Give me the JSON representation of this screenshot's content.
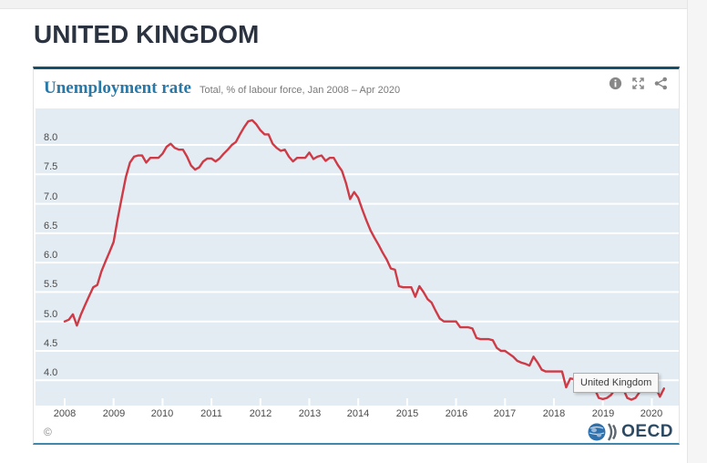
{
  "page": {
    "title": "UNITED KINGDOM"
  },
  "card": {
    "header": {
      "title": "Unemployment rate",
      "subtitle": "Total, % of labour force, Jan 2008 – Apr 2020",
      "icons": [
        {
          "name": "info-icon"
        },
        {
          "name": "fullscreen-icon"
        },
        {
          "name": "share-icon"
        }
      ]
    },
    "tooltip": {
      "label": "United Kingdom"
    },
    "footer": {
      "copyright": "©",
      "logo_text": "OECD"
    }
  },
  "colors": {
    "accent_title": "#2878a8",
    "line": "#ce3a46",
    "plot_background": "#e3ecf3",
    "gridline": "#ffffff",
    "card_top_border": "#15506b",
    "card_bottom_border": "#4186ad",
    "tick_label": "#4a4a4a"
  },
  "chart_data": {
    "type": "line",
    "title": "Unemployment rate",
    "subtitle": "Total, % of labour force, Jan 2008 – Apr 2020",
    "unit": "% of labour force",
    "frequency": "monthly",
    "x_start": "2008-01",
    "x_end": "2020-04",
    "x_tick_labels": [
      "2008",
      "2009",
      "2010",
      "2011",
      "2012",
      "2013",
      "2014",
      "2015",
      "2016",
      "2017",
      "2018",
      "2019",
      "2020"
    ],
    "y_tick_labels": [
      "4.0",
      "4.5",
      "5.0",
      "5.5",
      "6.0",
      "6.5",
      "7.0",
      "7.5",
      "8.0"
    ],
    "y_gridlines": [
      4.0,
      4.5,
      5.0,
      5.5,
      6.0,
      6.5,
      7.0,
      7.5,
      8.0
    ],
    "ylim": [
      3.57,
      8.62
    ],
    "grid": true,
    "legend_position": "none",
    "series": [
      {
        "name": "United Kingdom",
        "color": "#ce3a46",
        "values": [
          5.0,
          5.03,
          5.12,
          4.93,
          5.12,
          5.28,
          5.43,
          5.58,
          5.62,
          5.85,
          6.02,
          6.18,
          6.35,
          6.75,
          7.1,
          7.45,
          7.7,
          7.8,
          7.82,
          7.82,
          7.7,
          7.78,
          7.78,
          7.78,
          7.85,
          7.97,
          8.02,
          7.95,
          7.92,
          7.92,
          7.8,
          7.65,
          7.58,
          7.62,
          7.72,
          7.77,
          7.77,
          7.72,
          7.77,
          7.85,
          7.92,
          8.0,
          8.05,
          8.18,
          8.3,
          8.4,
          8.42,
          8.35,
          8.25,
          8.18,
          8.18,
          8.02,
          7.95,
          7.9,
          7.92,
          7.8,
          7.72,
          7.78,
          7.78,
          7.78,
          7.87,
          7.76,
          7.8,
          7.82,
          7.73,
          7.78,
          7.78,
          7.66,
          7.56,
          7.35,
          7.08,
          7.2,
          7.1,
          6.9,
          6.72,
          6.55,
          6.42,
          6.3,
          6.17,
          6.05,
          5.9,
          5.88,
          5.6,
          5.58,
          5.58,
          5.58,
          5.42,
          5.6,
          5.5,
          5.38,
          5.32,
          5.18,
          5.05,
          5.0,
          5.0,
          5.0,
          5.0,
          4.9,
          4.9,
          4.9,
          4.88,
          4.72,
          4.7,
          4.7,
          4.7,
          4.68,
          4.55,
          4.5,
          4.5,
          4.45,
          4.4,
          4.33,
          4.3,
          4.28,
          4.25,
          4.4,
          4.3,
          4.18,
          4.15,
          4.15,
          4.15,
          4.15,
          4.15,
          3.88,
          4.03,
          4.02,
          4.0,
          4.0,
          3.98,
          3.95,
          3.85,
          3.7,
          3.68,
          3.7,
          3.75,
          3.85,
          3.87,
          3.85,
          3.7,
          3.67,
          3.7,
          3.8,
          3.87,
          3.9,
          3.9,
          3.87,
          3.72,
          3.86
        ]
      }
    ]
  }
}
